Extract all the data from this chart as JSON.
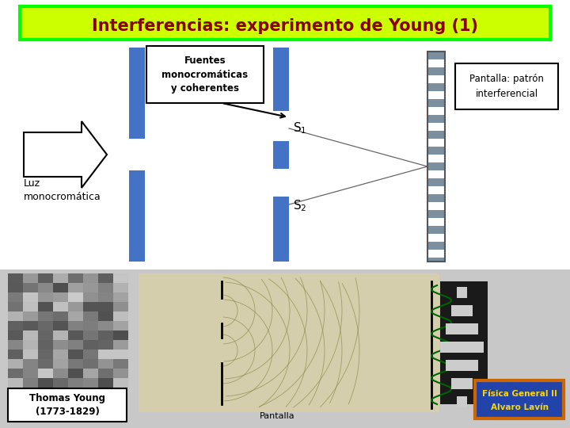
{
  "title": "Interferencias: experimento de Young (1)",
  "title_color": "#8B0000",
  "title_bg_color": "#CCFF00",
  "title_border_color": "#00FF00",
  "bg_color": "#FFFFFF",
  "fuentes_box_text": "Fuentes\nmonocromáticas\ny coherentes",
  "pantalla_box_text": "Pantalla: patrón\ninterferencial",
  "luz_text": "Luz\nmonocromática",
  "S1_text": "S$_1$",
  "S2_text": "S$_2$",
  "thomas_text": "Thomas Young\n(1773-1829)",
  "fisica_line1": "Física General II",
  "fisica_line2": "Alvaro Lavín",
  "barrier1_color": "#4472C4",
  "barrier2_color": "#4472C4",
  "screen_color": "#B0B0B0",
  "bg_color_lower": "#D3D3D3"
}
